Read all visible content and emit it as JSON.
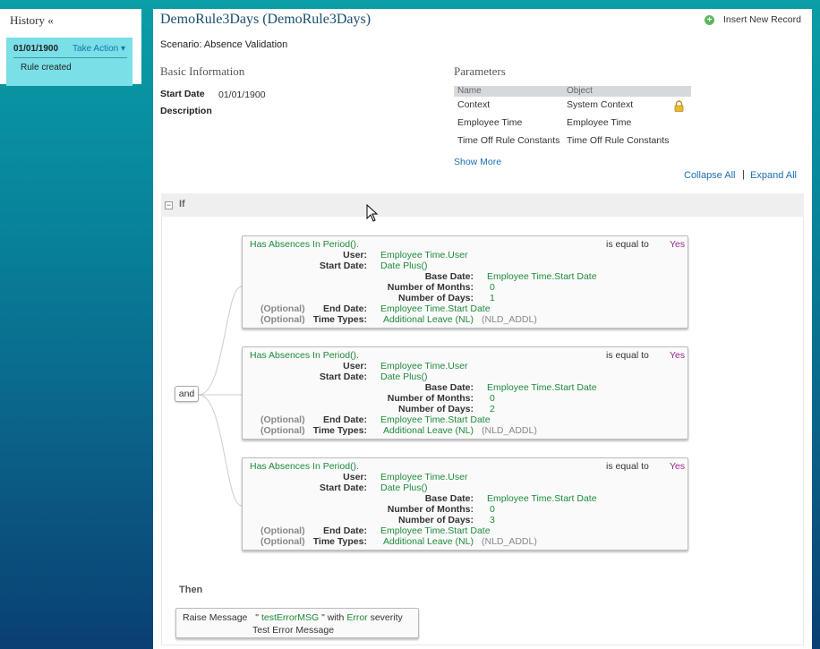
{
  "history": {
    "title": "History «",
    "entry_date": "01/01/1900",
    "take_action": "Take Action ▾",
    "entry_note": "Rule created"
  },
  "header": {
    "title": "DemoRule3Days (DemoRule3Days)",
    "scenario": "Scenario: Absence Validation",
    "insert_new_record": "Insert New Record"
  },
  "basic": {
    "heading": "Basic Information",
    "start_date_label": "Start Date",
    "start_date_value": "01/01/1900",
    "description_label": "Description"
  },
  "parameters": {
    "heading": "Parameters",
    "col_name": "Name",
    "col_object": "Object",
    "rows": [
      {
        "name": "Context",
        "object": "System Context"
      },
      {
        "name": "Employee Time",
        "object": "Employee Time"
      },
      {
        "name": "Time Off Rule Constants",
        "object": "Time Off Rule Constants"
      }
    ],
    "show_more": "Show More"
  },
  "controls": {
    "collapse_all": "Collapse All",
    "separator": "|",
    "expand_all": "Expand All"
  },
  "if_section": {
    "collapse_toggle": "−",
    "label": "If",
    "conjunction": "and",
    "conditions": [
      {
        "function": "Has Absences In Period().",
        "operator": "is equal to",
        "result": "Yes",
        "user_label": "User:",
        "user": "Employee Time.User",
        "start_label": "Start Date:",
        "start": "Date Plus()",
        "base_label": "Base Date:",
        "base": "Employee Time.Start Date",
        "months_label": "Number of Months:",
        "months": "0",
        "days_label": "Number of Days:",
        "days": "1",
        "optional": "(Optional)",
        "end_label": "End Date:",
        "end": "Employee Time.Start Date",
        "types_label": "Time Types:",
        "types": "Additional Leave (NL)",
        "types_code": "(NLD_ADDL)"
      },
      {
        "function": "Has Absences In Period().",
        "operator": "is equal to",
        "result": "Yes",
        "user_label": "User:",
        "user": "Employee Time.User",
        "start_label": "Start Date:",
        "start": "Date Plus()",
        "base_label": "Base Date:",
        "base": "Employee Time.Start Date",
        "months_label": "Number of Months:",
        "months": "0",
        "days_label": "Number of Days:",
        "days": "2",
        "optional": "(Optional)",
        "end_label": "End Date:",
        "end": "Employee Time.Start Date",
        "types_label": "Time Types:",
        "types": "Additional Leave (NL)",
        "types_code": "(NLD_ADDL)"
      },
      {
        "function": "Has Absences In Period().",
        "operator": "is equal to",
        "result": "Yes",
        "user_label": "User:",
        "user": "Employee Time.User",
        "start_label": "Start Date:",
        "start": "Date Plus()",
        "base_label": "Base Date:",
        "base": "Employee Time.Start Date",
        "months_label": "Number of Months:",
        "months": "0",
        "days_label": "Number of Days:",
        "days": "3",
        "optional": "(Optional)",
        "end_label": "End Date:",
        "end": "Employee Time.Start Date",
        "types_label": "Time Types:",
        "types": "Additional Leave (NL)",
        "types_code": "(NLD_ADDL)"
      }
    ]
  },
  "then_section": {
    "label": "Then",
    "raise_prefix": "Raise Message",
    "quote_open": "\"",
    "message_id": "testErrorMSG",
    "quote_close": "\"",
    "with_text": "with",
    "severity": "Error",
    "severity_suffix": "severity",
    "message_text": "Test Error Message"
  },
  "colors": {
    "link": "#1c6fb0",
    "value_green": "#1f8a3c",
    "result_purple": "#9b2a8f",
    "history_card": "#7adfe6"
  }
}
